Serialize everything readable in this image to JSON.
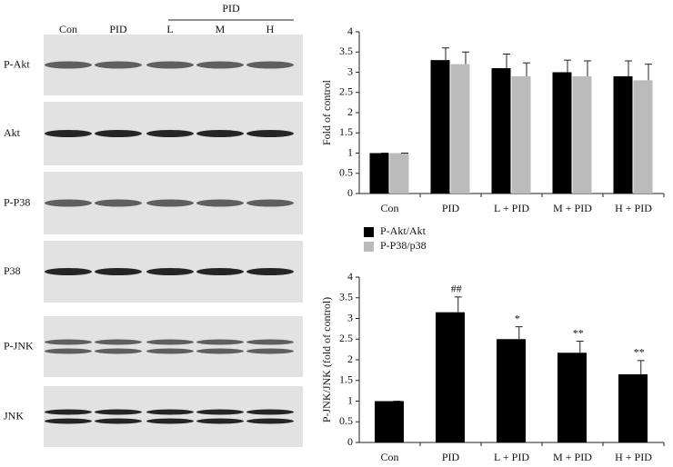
{
  "blots": {
    "header": "PID",
    "lanes": [
      "Con",
      "PID",
      "L",
      "M",
      "H"
    ],
    "rows": [
      "P-Akt",
      "Akt",
      "P-P38",
      "P38",
      "P-JNK",
      "JNK"
    ]
  },
  "chart_data": [
    {
      "type": "bar",
      "ylabel": "Fold of control",
      "categories": [
        "Con",
        "PID",
        "L + PID",
        "M + PID",
        "H + PID"
      ],
      "series": [
        {
          "name": "P-Akt/Akt",
          "color": "#000000",
          "values": [
            1,
            3.3,
            3.1,
            3.0,
            2.9
          ],
          "errors": [
            0,
            0.3,
            0.35,
            0.3,
            0.38
          ]
        },
        {
          "name": "P-P38/p38",
          "color": "#bbbbbb",
          "values": [
            1,
            3.2,
            2.9,
            2.9,
            2.8
          ],
          "errors": [
            0,
            0.3,
            0.33,
            0.38,
            0.4
          ]
        }
      ],
      "ylim": [
        0,
        4
      ],
      "yticks": [
        0,
        0.5,
        1,
        1.5,
        2,
        2.5,
        3,
        3.5,
        4
      ],
      "legend": "bottom-left"
    },
    {
      "type": "bar",
      "ylabel": "P-JNK/JNK (fold of control)",
      "categories": [
        "Con",
        "PID",
        "L + PID",
        "M + PID",
        "H + PID"
      ],
      "series": [
        {
          "color": "#000000",
          "values": [
            1,
            3.15,
            2.5,
            2.17,
            1.65
          ],
          "errors": [
            0,
            0.37,
            0.3,
            0.28,
            0.33
          ]
        }
      ],
      "annotations": [
        null,
        "##",
        "*",
        "**",
        "**"
      ],
      "ylim": [
        0,
        4
      ],
      "yticks": [
        0,
        0.5,
        1,
        1.5,
        2,
        2.5,
        3,
        3.5,
        4
      ]
    }
  ]
}
